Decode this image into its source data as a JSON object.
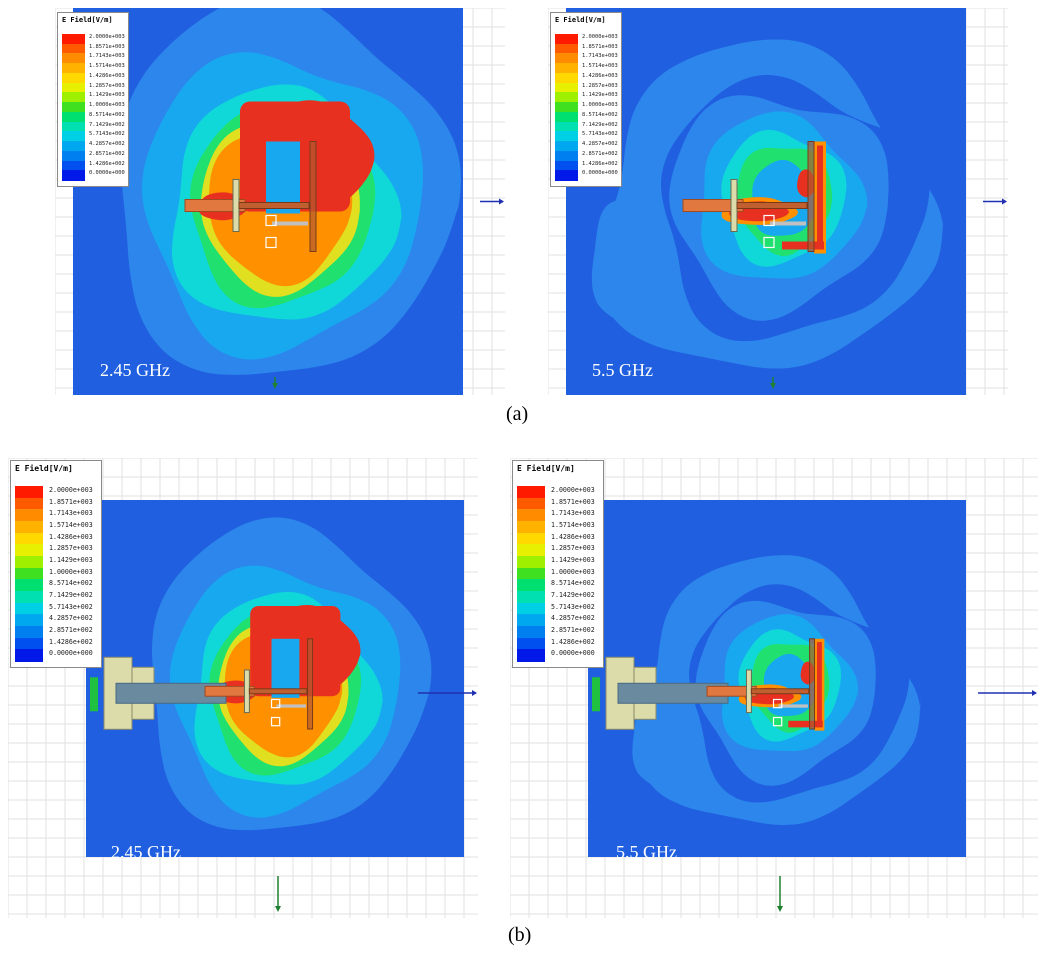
{
  "legend": {
    "title": "E Field[V/m]",
    "labels": [
      "2.0000e+003",
      "1.8571e+003",
      "1.7143e+003",
      "1.5714e+003",
      "1.4286e+003",
      "1.2857e+003",
      "1.1429e+003",
      "1.0000e+003",
      "8.5714e+002",
      "7.1429e+002",
      "5.7143e+002",
      "4.2857e+002",
      "2.8571e+002",
      "1.4286e+002",
      "0.0000e+000"
    ],
    "colors": [
      "#ff1a00",
      "#ff5a00",
      "#ff8c00",
      "#ffb300",
      "#ffd900",
      "#e6f000",
      "#9ef000",
      "#3fe020",
      "#00e070",
      "#00e0b0",
      "#00d0e6",
      "#00a8f0",
      "#0080f0",
      "#0050f0",
      "#0018e8"
    ]
  },
  "colors": {
    "background": "#2060e0",
    "ring_outer": "#2d86ec",
    "ring_mid": "#18a8f0",
    "ring_cyan": "#10d8d8",
    "ring_green": "#20e070",
    "ring_yellow": "#e0e020",
    "ring_orange": "#ff9000",
    "hot": "#e83020",
    "connector": "#dcdcaa",
    "axis": "#2030b0",
    "grid": "#e2e2e2"
  },
  "panels": {
    "a_left": {
      "freq_label": "2.45 GHz"
    },
    "a_right": {
      "freq_label": "5.5 GHz"
    },
    "b_left": {
      "freq_label": "2.45 GHz"
    },
    "b_right": {
      "freq_label": "5.5 GHz"
    }
  },
  "captions": {
    "a": "(a)",
    "b": "(b)"
  }
}
